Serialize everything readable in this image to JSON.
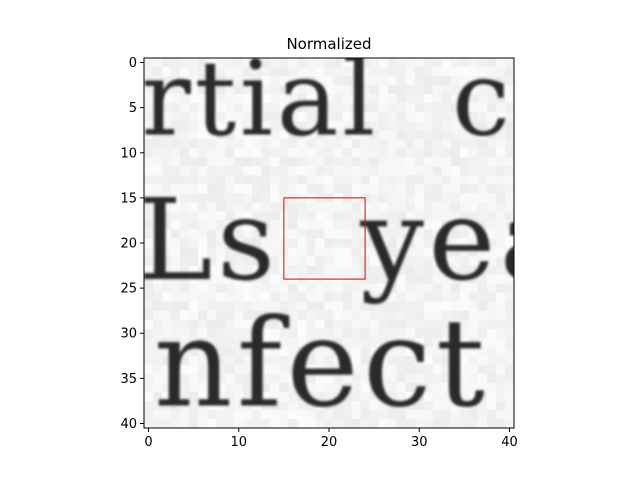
{
  "chart_data": {
    "type": "heatmap",
    "title": "Normalized",
    "xlabel": "",
    "ylabel": "",
    "xlim": [
      -0.5,
      40.5
    ],
    "ylim": [
      40.5,
      -0.5
    ],
    "x_ticks": [
      0,
      10,
      20,
      30,
      40
    ],
    "y_ticks": [
      0,
      5,
      10,
      15,
      20,
      25,
      30,
      35,
      40
    ],
    "grid": false,
    "colormap": "gray_r",
    "background_color": "#f4f4f4",
    "rect_color": "#e00000",
    "image_content": "grayscale crop of printed text with three partial text lines",
    "text_rows": [
      {
        "y_range": [
          1,
          8
        ],
        "text": "rtial  co"
      },
      {
        "y_range": [
          15,
          24
        ],
        "text": "Ls  yea"
      },
      {
        "y_range": [
          26,
          38
        ],
        "text": "nfect"
      }
    ],
    "highlight_box": {
      "x0": 15,
      "y0": 15,
      "x1": 24,
      "y1": 24
    }
  }
}
